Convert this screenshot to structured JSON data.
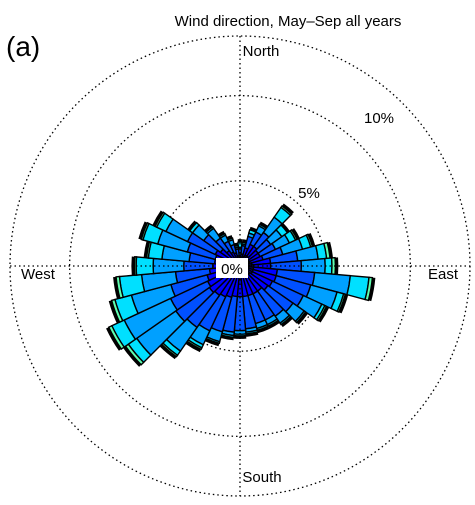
{
  "chart_data": {
    "type": "polar-stacked-bar",
    "panel_label": "(a)",
    "title": "Wind direction, May–Sep all years",
    "direction_labels": {
      "north": "North",
      "east": "East",
      "south": "South",
      "west": "West"
    },
    "ring_labels": [
      "5%",
      "10%"
    ],
    "center_label": "0%",
    "grid": "dotted circles and cardinal axes",
    "rmax_percent": 13.5,
    "colors": [
      "#0000aa",
      "#0000ff",
      "#0050ff",
      "#00a0ff",
      "#00e0ff",
      "#60ffb0",
      "#d0ff60",
      "#000000"
    ],
    "sectors_deg_clockwise_from_north": [
      0,
      10,
      20,
      30,
      40,
      50,
      60,
      70,
      80,
      90,
      100,
      110,
      120,
      130,
      140,
      150,
      160,
      170,
      180,
      190,
      200,
      210,
      220,
      230,
      240,
      250,
      260,
      270,
      280,
      290,
      300,
      310,
      320,
      330,
      340,
      350
    ],
    "bin_totals_percent": [
      [
        0.4,
        0.6,
        1.0,
        1.1,
        1.4
      ],
      [
        0.4,
        0.7,
        1.2,
        1.3,
        1.4
      ],
      [
        0.6,
        1.1,
        1.8,
        2.0,
        2.2
      ],
      [
        0.7,
        1.4,
        2.2,
        2.6,
        2.7
      ],
      [
        0.7,
        1.4,
        2.4,
        3.5,
        4.2,
        4.3
      ],
      [
        0.6,
        1.3,
        2.2,
        3.0,
        3.4
      ],
      [
        0.6,
        1.3,
        2.3,
        3.2,
        3.6,
        3.7
      ],
      [
        0.6,
        1.4,
        2.6,
        3.8,
        4.3,
        4.4
      ],
      [
        0.7,
        1.8,
        3.4,
        4.6,
        5.1,
        5.3
      ],
      [
        0.7,
        1.8,
        3.6,
        5.0,
        5.4,
        5.6
      ],
      [
        0.8,
        2.2,
        4.4,
        6.5,
        7.6,
        7.8
      ],
      [
        0.8,
        2.2,
        4.3,
        5.9,
        6.3,
        6.4
      ],
      [
        0.8,
        2.1,
        4.1,
        5.3,
        5.5,
        5.6
      ],
      [
        0.7,
        2.0,
        3.8,
        4.6,
        4.7
      ],
      [
        0.6,
        1.8,
        3.6,
        4.1,
        4.2
      ],
      [
        0.6,
        1.8,
        3.5,
        3.8,
        3.9
      ],
      [
        0.6,
        1.8,
        3.5,
        3.8,
        3.9
      ],
      [
        0.6,
        1.8,
        3.7,
        3.9,
        4.0
      ],
      [
        0.6,
        1.8,
        3.8,
        4.0,
        4.1
      ],
      [
        0.6,
        1.8,
        3.9,
        4.1,
        4.2
      ],
      [
        0.6,
        1.9,
        4.0,
        4.6,
        4.7
      ],
      [
        0.6,
        2.0,
        4.2,
        5.1,
        5.3,
        5.4
      ],
      [
        0.6,
        2.1,
        4.4,
        6.1,
        6.4,
        6.5
      ],
      [
        0.6,
        2.2,
        4.6,
        7.4,
        8.0,
        8.2
      ],
      [
        0.6,
        2.1,
        4.5,
        7.5,
        8.3,
        8.5
      ],
      [
        0.6,
        2.0,
        4.2,
        6.6,
        7.6,
        7.8
      ],
      [
        0.6,
        1.8,
        3.8,
        5.8,
        7.1,
        7.3
      ],
      [
        0.6,
        1.6,
        3.3,
        5.1,
        6.1,
        6.2
      ],
      [
        0.6,
        1.5,
        3.0,
        4.6,
        5.4,
        5.5
      ],
      [
        0.6,
        1.5,
        3.2,
        5.0,
        5.9,
        6.0
      ],
      [
        0.6,
        1.6,
        3.4,
        4.8,
        5.4,
        5.5
      ],
      [
        0.5,
        1.4,
        2.6,
        3.4,
        3.6
      ],
      [
        0.5,
        1.1,
        2.0,
        2.7,
        2.8
      ],
      [
        0.4,
        0.9,
        1.6,
        2.0,
        2.1
      ],
      [
        0.4,
        0.8,
        1.3,
        1.6,
        1.7
      ],
      [
        0.3,
        0.6,
        1.0,
        1.1,
        1.2
      ]
    ]
  }
}
